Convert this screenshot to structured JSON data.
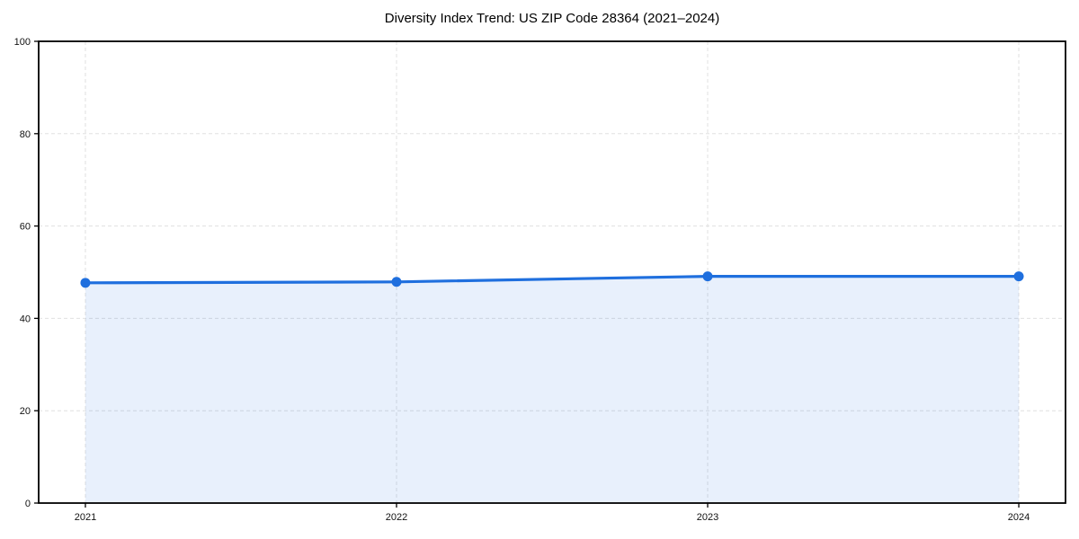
{
  "chart_data": {
    "type": "area",
    "title": "Diversity Index Trend: US ZIP Code 28364 (2021–2024)",
    "x": [
      2021,
      2022,
      2023,
      2024
    ],
    "series": [
      {
        "name": "Diversity Index",
        "values": [
          47.7,
          47.9,
          49.1,
          49.1
        ]
      }
    ],
    "xlabel": "",
    "ylabel": "",
    "ylim": [
      0,
      100
    ],
    "yticks": [
      0,
      20,
      40,
      60,
      80,
      100
    ],
    "grid": "dashed-both-axes",
    "legend_position": "none",
    "colors": {
      "line": "#1f6fde",
      "fill": "#1f6fde",
      "fill_opacity": 0.1,
      "grid": "#e0e0e0",
      "axis": "#000000",
      "text": "#111111",
      "background": "#ffffff"
    }
  }
}
